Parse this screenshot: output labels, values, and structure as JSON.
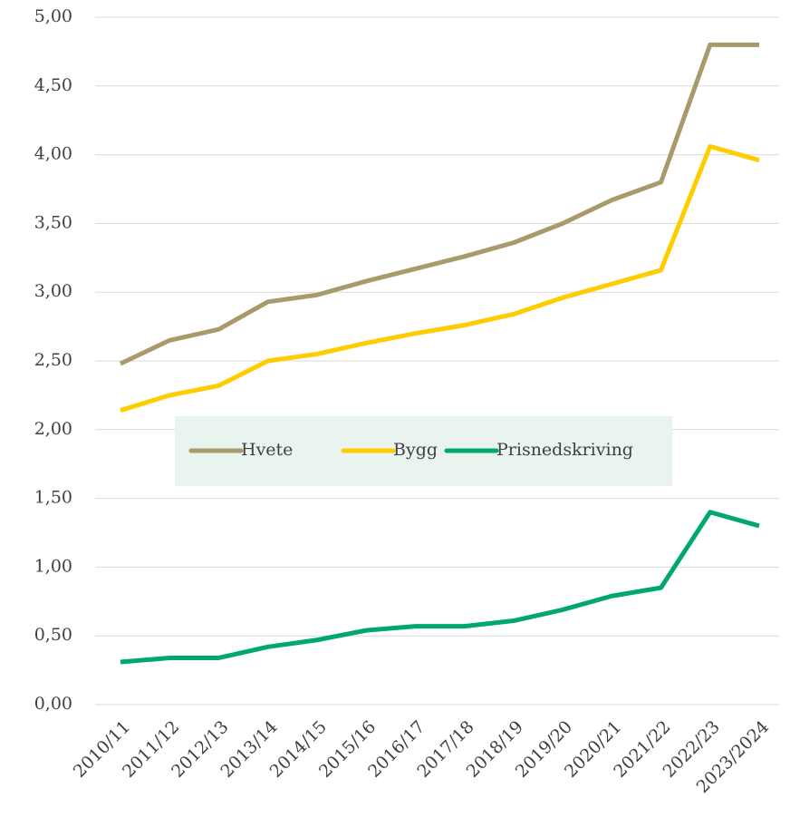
{
  "chart_data": {
    "type": "line",
    "categories": [
      "2010/11",
      "2011/12",
      "2012/13",
      "2013/14",
      "2014/15",
      "2015/16",
      "2016/17",
      "2017/18",
      "2018/19",
      "2019/20",
      "2020/21",
      "2021/22",
      "2022/23",
      "2023/2024"
    ],
    "series": [
      {
        "name": "Hvete",
        "color": "#a89a6a",
        "values": [
          2.48,
          2.65,
          2.73,
          2.93,
          2.98,
          3.08,
          3.17,
          3.26,
          3.36,
          3.5,
          3.67,
          3.8,
          4.8,
          4.8
        ]
      },
      {
        "name": "Bygg",
        "color": "#ffcc00",
        "values": [
          2.14,
          2.25,
          2.32,
          2.5,
          2.55,
          2.63,
          2.7,
          2.76,
          2.84,
          2.96,
          3.06,
          3.16,
          4.06,
          3.96
        ]
      },
      {
        "name": "Prisnedskriving",
        "color": "#00a86b",
        "values": [
          0.31,
          0.34,
          0.34,
          0.42,
          0.47,
          0.54,
          0.57,
          0.57,
          0.61,
          0.69,
          0.79,
          0.85,
          1.4,
          1.3
        ]
      }
    ],
    "ylim": [
      0,
      5
    ],
    "yticks": [
      {
        "value": 0,
        "label": "0,00"
      },
      {
        "value": 0.5,
        "label": "0,50"
      },
      {
        "value": 1,
        "label": "1,00"
      },
      {
        "value": 1.5,
        "label": "1,50"
      },
      {
        "value": 2,
        "label": "2,00"
      },
      {
        "value": 2.5,
        "label": "2,50"
      },
      {
        "value": 3,
        "label": "3,00"
      },
      {
        "value": 3.5,
        "label": "3,50"
      },
      {
        "value": 4,
        "label": "4,00"
      },
      {
        "value": 4.5,
        "label": "4,50"
      },
      {
        "value": 5,
        "label": "5,00"
      }
    ],
    "grid": true,
    "legend": "center"
  }
}
